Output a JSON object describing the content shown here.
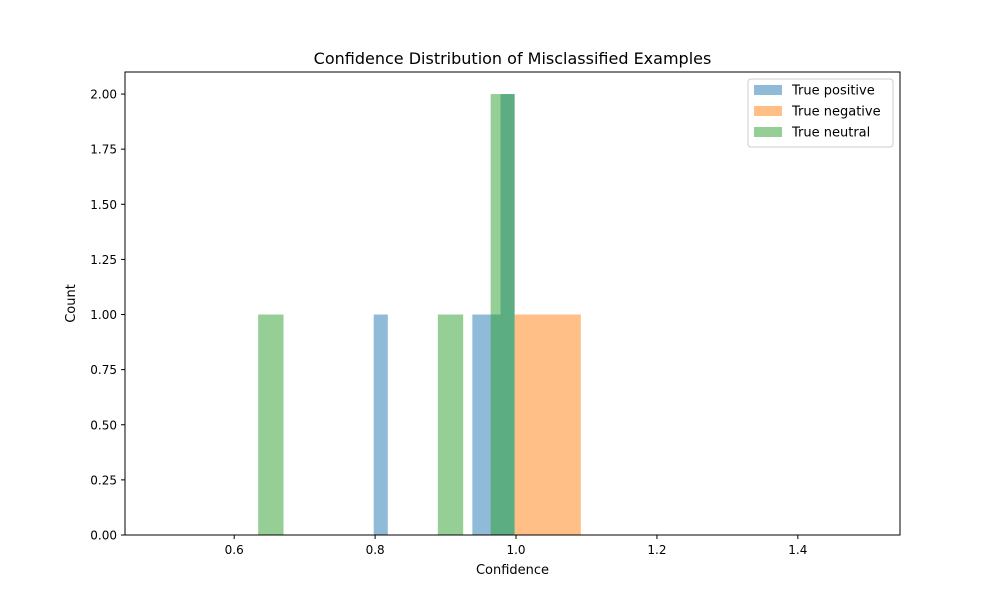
{
  "chart_data": {
    "type": "bar",
    "title": "Confidence Distribution of Misclassified Examples",
    "xlabel": "Confidence",
    "ylabel": "Count",
    "xlim": [
      0.445,
      1.545
    ],
    "ylim": [
      0,
      2.1
    ],
    "xticks": [
      0.6,
      0.8,
      1.0,
      1.2,
      1.4
    ],
    "xtick_labels": [
      "0.6",
      "0.8",
      "1.0",
      "1.2",
      "1.4"
    ],
    "yticks": [
      0.0,
      0.25,
      0.5,
      0.75,
      1.0,
      1.25,
      1.5,
      1.75,
      2.0
    ],
    "ytick_labels": [
      "0.00",
      "0.25",
      "0.50",
      "0.75",
      "1.00",
      "1.25",
      "1.50",
      "1.75",
      "2.00"
    ],
    "grid": false,
    "legend": {
      "position": "top-right"
    },
    "series": [
      {
        "name": "True positive",
        "color": "#1f77b4",
        "opacity": 0.5,
        "bins": [
          {
            "x0": 0.798,
            "x1": 0.818,
            "count": 1
          },
          {
            "x0": 0.938,
            "x1": 0.958,
            "count": 1
          },
          {
            "x0": 0.958,
            "x1": 0.978,
            "count": 1
          },
          {
            "x0": 0.978,
            "x1": 0.998,
            "count": 2
          }
        ]
      },
      {
        "name": "True negative",
        "color": "#ff7f0e",
        "opacity": 0.5,
        "bins": [
          {
            "x0": 0.998,
            "x1": 1.092,
            "count": 1
          }
        ]
      },
      {
        "name": "True neutral",
        "color": "#2ca02c",
        "opacity": 0.5,
        "bins": [
          {
            "x0": 0.634,
            "x1": 0.67,
            "count": 1
          },
          {
            "x0": 0.889,
            "x1": 0.925,
            "count": 1
          },
          {
            "x0": 0.964,
            "x1": 0.998,
            "count": 2
          }
        ]
      }
    ]
  }
}
